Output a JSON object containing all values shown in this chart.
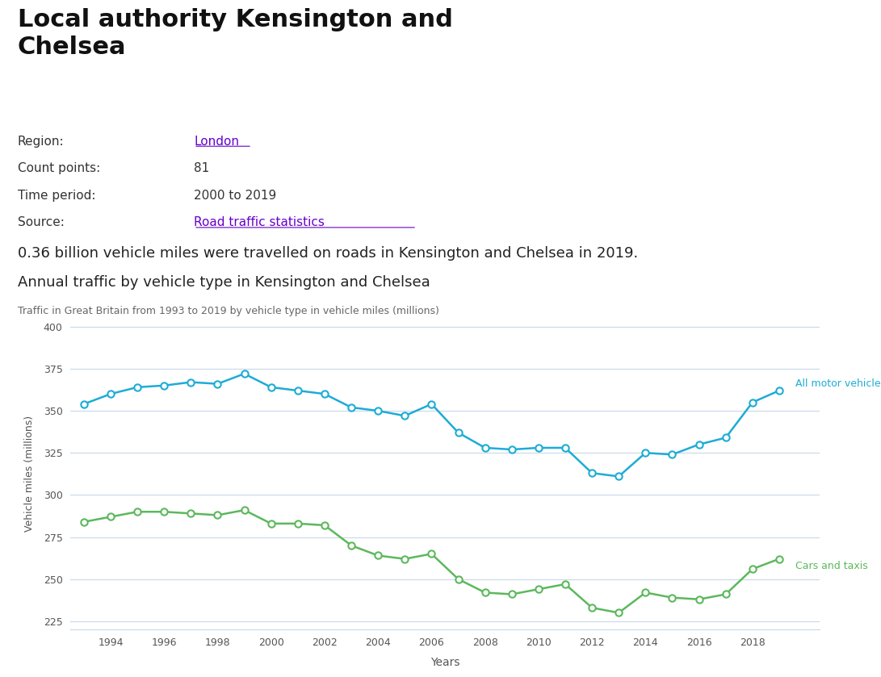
{
  "title_main": "Local authority Kensington and\nChelsea",
  "info_labels": [
    "Region:",
    "Count points:",
    "Time period:",
    "Source:"
  ],
  "info_values": [
    "London",
    "81",
    "2000 to 2019",
    "Road traffic statistics"
  ],
  "summary_text": "0.36 billion vehicle miles were travelled on roads in Kensington and Chelsea in 2019.",
  "chart_title": "Annual traffic by vehicle type in Kensington and Chelsea",
  "chart_subtitle": "Traffic in Great Britain from 1993 to 2019 by vehicle type in vehicle miles (millions)",
  "xlabel": "Years",
  "ylabel": "Vehicle miles (millions)",
  "years": [
    1993,
    1994,
    1995,
    1996,
    1997,
    1998,
    1999,
    2000,
    2001,
    2002,
    2003,
    2004,
    2005,
    2006,
    2007,
    2008,
    2009,
    2010,
    2011,
    2012,
    2013,
    2014,
    2015,
    2016,
    2017,
    2018,
    2019
  ],
  "all_motor": [
    354,
    360,
    364,
    365,
    367,
    366,
    372,
    364,
    362,
    360,
    352,
    350,
    347,
    354,
    337,
    328,
    327,
    328,
    328,
    313,
    311,
    325,
    324,
    330,
    334,
    355,
    362
  ],
  "cars_taxis": [
    284,
    287,
    290,
    290,
    289,
    288,
    291,
    283,
    283,
    282,
    270,
    264,
    262,
    265,
    250,
    242,
    241,
    244,
    247,
    233,
    230,
    242,
    239,
    238,
    241,
    256,
    262
  ],
  "all_motor_color": "#1dacd6",
  "cars_taxis_color": "#5cb85c",
  "ylim": [
    220,
    405
  ],
  "yticks": [
    225,
    250,
    275,
    300,
    325,
    350,
    375,
    400
  ],
  "bg_color": "#ffffff",
  "grid_color": "#c8d8e8",
  "link_color": "#6600cc",
  "text_color": "#333333",
  "axis_tick_color": "#555555"
}
